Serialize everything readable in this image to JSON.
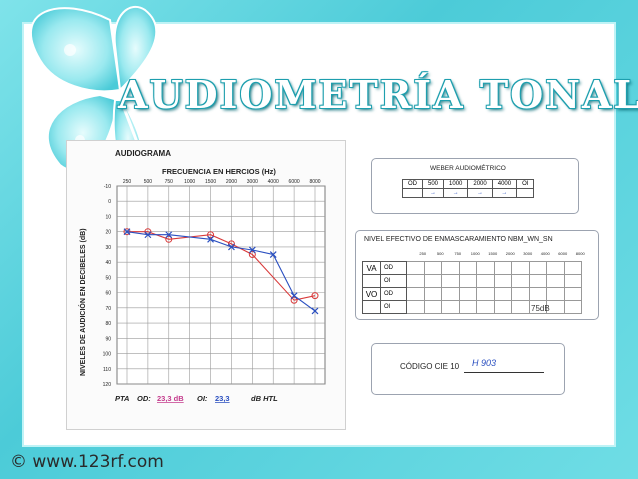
{
  "slide": {
    "title": "AUDIOMETRÍA TONAL",
    "watermark": "© www.123rf.com"
  },
  "audiogram": {
    "title": "AUDIOGRAMA",
    "freq_header": "FRECUENCIA EN HERCIOS (Hz)",
    "y_label": "NIVELES DE AUDICIÓN EN DECIBELES (dB)",
    "freq_ticks": [
      "250",
      "500",
      "750",
      "1000",
      "1500",
      "2000",
      "3000",
      "4000",
      "6000",
      "8000"
    ],
    "db_ticks": [
      "-10",
      "0",
      "10",
      "20",
      "30",
      "40",
      "50",
      "60",
      "70",
      "80",
      "90",
      "100",
      "110",
      "120"
    ],
    "pta_label": "PTA",
    "od_label": "OD:",
    "od_value": "23,3 dB",
    "oi_label": "OI:",
    "oi_value": "23,3",
    "unit": "dB HTL"
  },
  "weber": {
    "title": "WEBER AUDIOMÉTRICO",
    "headers": [
      "OD",
      "500",
      "1000",
      "2000",
      "4000",
      "OI"
    ],
    "symbols": [
      "→",
      "→",
      "→",
      "→"
    ]
  },
  "masking": {
    "title": "NIVEL EFECTIVO DE ENMASCARAMIENTO NBM_WN_SN",
    "freqs": [
      "250",
      "500",
      "750",
      "1000",
      "1500",
      "2000",
      "3000",
      "4000",
      "6000",
      "8000"
    ],
    "rows": [
      {
        "group": "VA",
        "ear": "OD"
      },
      {
        "group": "",
        "ear": "OI"
      },
      {
        "group": "VO",
        "ear": "OD"
      },
      {
        "group": "",
        "ear": "OI"
      }
    ],
    "note": "75dB"
  },
  "cie": {
    "label": "CÓDIGO CIE 10",
    "value": "H 903"
  },
  "chart_data": {
    "type": "line",
    "x": [
      "250",
      "500",
      "750",
      "1000",
      "1500",
      "2000",
      "3000",
      "4000",
      "6000",
      "8000"
    ],
    "ylim": [
      -10,
      120
    ],
    "series": [
      {
        "name": "OD",
        "color": "#d93a3a",
        "values": [
          20,
          20,
          25,
          null,
          22,
          28,
          35,
          null,
          65,
          62
        ]
      },
      {
        "name": "OI",
        "color": "#2a4fc0",
        "values": [
          20,
          22,
          22,
          null,
          25,
          30,
          32,
          35,
          62,
          72
        ]
      }
    ]
  }
}
